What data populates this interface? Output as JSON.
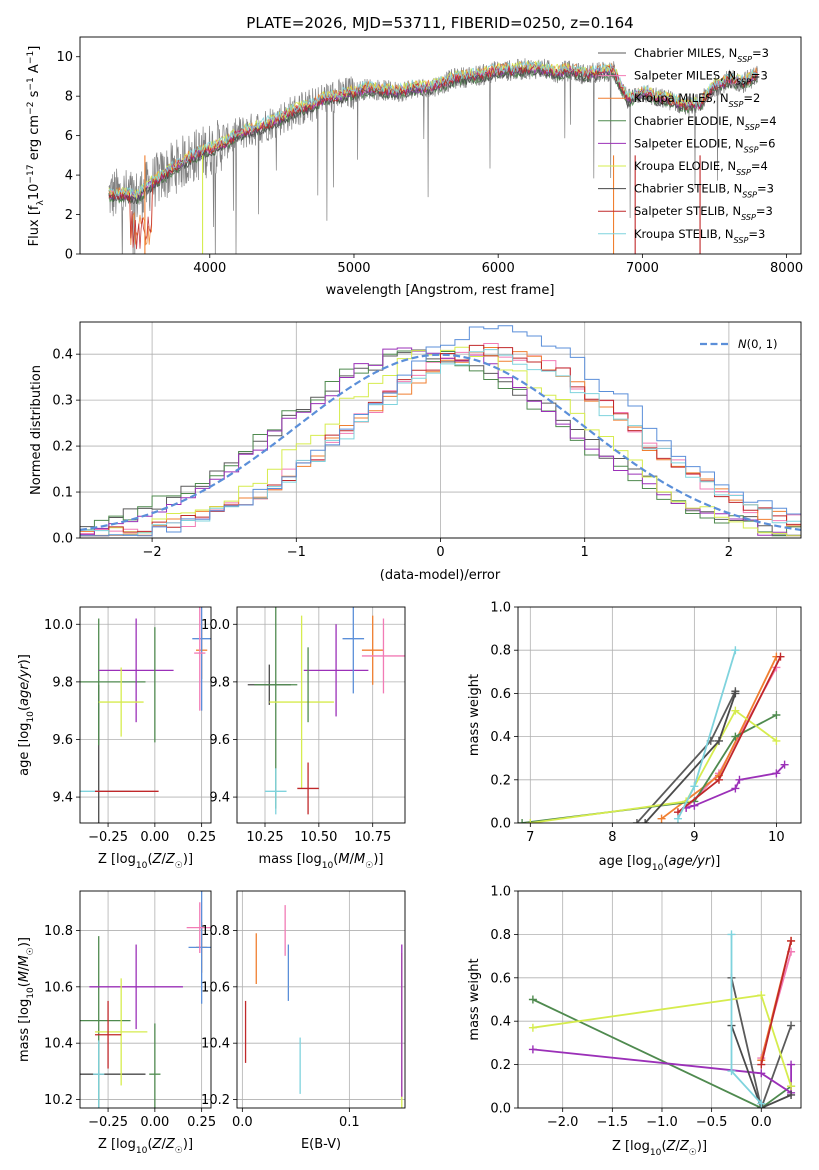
{
  "chart_data": [
    {
      "id": "spectrum",
      "type": "line",
      "title": "PLATE=2026, MJD=53711, FIBERID=0250, z=0.164",
      "xlabel": "wavelength [Angstrom, rest frame]",
      "ylabel": "Flux [f_λ 10^-17 erg cm^-2 s^-1 A^-1]",
      "xlim": [
        3100,
        8100
      ],
      "ylim": [
        0,
        11
      ],
      "xticks": [
        4000,
        5000,
        6000,
        7000,
        8000
      ],
      "yticks": [
        0,
        2,
        4,
        6,
        8,
        10
      ],
      "data_series": {
        "name": "data",
        "color": "#808080",
        "x": [
          3300,
          3400,
          3500,
          3600,
          3700,
          3800,
          3900,
          4000,
          4100,
          4200,
          4300,
          4400,
          4500,
          4600,
          4700,
          4800,
          4900,
          5000,
          5100,
          5200,
          5300,
          5400,
          5500,
          5600,
          5700,
          5800,
          5900,
          6000,
          6100,
          6200,
          6300,
          6400,
          6500,
          6600,
          6700,
          6800,
          6900,
          7000,
          7100,
          7200,
          7300,
          7400,
          7500,
          7600,
          7700,
          7800
        ],
        "y": [
          3.0,
          3.0,
          2.9,
          3.6,
          4.1,
          4.6,
          5.0,
          5.3,
          5.6,
          6.1,
          6.3,
          6.6,
          6.9,
          7.3,
          7.5,
          7.9,
          8.0,
          8.2,
          8.4,
          8.3,
          8.2,
          8.4,
          8.4,
          8.6,
          8.9,
          9.0,
          9.1,
          9.3,
          9.3,
          9.4,
          9.4,
          9.2,
          9.3,
          9.1,
          9.2,
          9.3,
          7.8,
          8.2,
          7.9,
          7.8,
          7.5,
          7.6,
          8.5,
          8.8,
          8.7,
          9.1
        ]
      },
      "series": [
        {
          "name": "Chabrier MILES, N_SSP=3",
          "label_main": "Chabrier MILES, N",
          "label_sub": "SSP",
          "label_end": "=3",
          "color": "#5a5a5a"
        },
        {
          "name": "Salpeter MILES, N_SSP=3",
          "label_main": "Salpeter MILES, N",
          "label_sub": "SSP",
          "label_end": "=3",
          "color": "#f27bb5"
        },
        {
          "name": "Kroupa MILES, N_SSP=2",
          "label_main": "Kroupa MILES, N",
          "label_sub": "SSP",
          "label_end": "=2",
          "color": "#f07f30"
        },
        {
          "name": "Chabrier ELODIE, N_SSP=4",
          "label_main": "Chabrier ELODIE, N",
          "label_sub": "SSP",
          "label_end": "=4",
          "color": "#4f8a4f"
        },
        {
          "name": "Salpeter ELODIE, N_SSP=6",
          "label_main": "Salpeter ELODIE, N",
          "label_sub": "SSP",
          "label_end": "=6",
          "color": "#9b30b8"
        },
        {
          "name": "Kroupa ELODIE, N_SSP=4",
          "label_main": "Kroupa ELODIE, N",
          "label_sub": "SSP",
          "label_end": "=4",
          "color": "#d6ec4e"
        },
        {
          "name": "Chabrier STELIB, N_SSP=3",
          "label_main": "Chabrier STELIB, N",
          "label_sub": "SSP",
          "label_end": "=3",
          "color": "#4a4a4a"
        },
        {
          "name": "Salpeter STELIB, N_SSP=3",
          "label_main": "Salpeter STELIB, N",
          "label_sub": "SSP",
          "label_end": "=3",
          "color": "#c0282a"
        },
        {
          "name": "Kroupa STELIB, N_SSP=3",
          "label_main": "Kroupa STELIB, N",
          "label_sub": "SSP",
          "label_end": "=3",
          "color": "#7fd3dd"
        }
      ]
    },
    {
      "id": "residuals",
      "type": "histogram",
      "xlabel": "(data-model)/error",
      "ylabel": "Normed distribution",
      "xlim": [
        -2.5,
        2.5
      ],
      "ylim": [
        0,
        0.47
      ],
      "xticks": [
        -2,
        -1,
        0,
        1,
        2
      ],
      "yticks": [
        0.0,
        0.1,
        0.2,
        0.3,
        0.4
      ],
      "legend": "N(0, 1)",
      "legend_color": "#5b8fd9",
      "bin_edges_start": -2.5,
      "bin_width": 0.1,
      "hist_colors": [
        "#5a5a5a",
        "#f27bb5",
        "#f07f30",
        "#4f8a4f",
        "#9b30b8",
        "#d6ec4e",
        "#c0282a",
        "#7fd3dd",
        "#5b8fd9"
      ],
      "hist_profiles": [
        {
          "mean": -0.1,
          "sd": 1.0,
          "peak": 0.4
        },
        {
          "mean": 0.35,
          "sd": 0.95,
          "peak": 0.41
        },
        {
          "mean": 0.35,
          "sd": 0.95,
          "peak": 0.4
        },
        {
          "mean": -0.15,
          "sd": 1.0,
          "peak": 0.4
        },
        {
          "mean": -0.1,
          "sd": 0.95,
          "peak": 0.41
        },
        {
          "mean": 0.1,
          "sd": 0.9,
          "peak": 0.41
        },
        {
          "mean": 0.35,
          "sd": 0.95,
          "peak": 0.41
        },
        {
          "mean": 0.35,
          "sd": 0.95,
          "peak": 0.4
        },
        {
          "mean": 0.4,
          "sd": 0.95,
          "peak": 0.45
        }
      ]
    },
    {
      "id": "age-vs-Z",
      "type": "errorbar",
      "xlabel": "Z [log10(Z/Z☉)]",
      "ylabel": "age [log10(age/yr)]",
      "xlim": [
        -0.4,
        0.3
      ],
      "ylim": [
        9.31,
        10.06
      ],
      "xticks": [
        -0.25,
        0.0,
        0.25
      ],
      "yticks": [
        9.4,
        9.6,
        9.8,
        10.0
      ],
      "points": [
        {
          "x": -0.3,
          "y": 9.42,
          "xerr": 0.0,
          "yerr": 0.37,
          "color": "#4a4a4a"
        },
        {
          "x": -0.3,
          "y": 9.8,
          "xerr": 0.25,
          "yerr": 0.22,
          "color": "#4f8a4f"
        },
        {
          "x": -0.1,
          "y": 9.84,
          "xerr": 0.2,
          "yerr": 0.18,
          "color": "#9b30b8"
        },
        {
          "x": -0.18,
          "y": 9.73,
          "xerr": 0.12,
          "yerr": 0.12,
          "color": "#d6ec4e"
        },
        {
          "x": 0.0,
          "y": 9.79,
          "xerr": 0.0,
          "yerr": 0.2,
          "color": "#4f8a4f"
        },
        {
          "x": -0.3,
          "y": 9.42,
          "xerr": 0.17,
          "yerr": 0.0,
          "color": "#7fd3dd"
        },
        {
          "x": -0.15,
          "y": 9.42,
          "xerr": 0.17,
          "yerr": 0.0,
          "color": "#c0282a"
        },
        {
          "x": 0.25,
          "y": 9.91,
          "xerr": 0.03,
          "yerr": 0.1,
          "color": "#f07f30"
        },
        {
          "x": 0.25,
          "y": 9.95,
          "xerr": 0.05,
          "yerr": 0.25,
          "color": "#5b8fd9"
        },
        {
          "x": 0.24,
          "y": 9.9,
          "xerr": 0.03,
          "yerr": 0.2,
          "color": "#f27bb5"
        }
      ]
    },
    {
      "id": "age-vs-mass",
      "type": "errorbar",
      "xlabel": "mass [log10(M/M☉)]",
      "ylabel": "",
      "xlim": [
        10.12,
        10.9
      ],
      "ylim": [
        9.31,
        10.06
      ],
      "xticks": [
        10.25,
        10.5,
        10.75
      ],
      "yticks": [
        9.4,
        9.6,
        9.8,
        10.0
      ],
      "points": [
        {
          "x": 10.27,
          "y": 9.79,
          "xerr": 0.1,
          "yerr": 0.07,
          "color": "#4a4a4a"
        },
        {
          "x": 10.3,
          "y": 9.79,
          "xerr": 0.1,
          "yerr": 0.43,
          "color": "#4f8a4f"
        },
        {
          "x": 10.58,
          "y": 9.84,
          "xerr": 0.15,
          "yerr": 0.16,
          "color": "#9b30b8"
        },
        {
          "x": 10.42,
          "y": 9.73,
          "xerr": 0.15,
          "yerr": 0.3,
          "color": "#d6ec4e"
        },
        {
          "x": 10.45,
          "y": 9.79,
          "xerr": 0.0,
          "yerr": 0.13,
          "color": "#4f8a4f"
        },
        {
          "x": 10.3,
          "y": 9.42,
          "xerr": 0.05,
          "yerr": 0.08,
          "color": "#7fd3dd"
        },
        {
          "x": 10.45,
          "y": 9.43,
          "xerr": 0.05,
          "yerr": 0.09,
          "color": "#c0282a"
        },
        {
          "x": 10.75,
          "y": 9.91,
          "xerr": 0.05,
          "yerr": 0.12,
          "color": "#f07f30"
        },
        {
          "x": 10.66,
          "y": 9.95,
          "xerr": 0.05,
          "yerr": 0.19,
          "color": "#5b8fd9"
        },
        {
          "x": 10.8,
          "y": 9.89,
          "xerr": 0.1,
          "yerr": 0.13,
          "color": "#f27bb5"
        }
      ]
    },
    {
      "id": "weight-vs-age",
      "type": "line",
      "xlabel": "age [log10(age/yr)]",
      "ylabel": "mass weight",
      "xlim": [
        6.85,
        10.3
      ],
      "ylim": [
        0,
        1.0
      ],
      "xticks": [
        7,
        8,
        9,
        10
      ],
      "yticks": [
        0.0,
        0.2,
        0.4,
        0.6,
        0.8,
        1.0
      ],
      "series": [
        {
          "color": "#5a5a5a",
          "x": [
            8.3,
            9.2,
            9.5
          ],
          "y": [
            0.0,
            0.38,
            0.61
          ]
        },
        {
          "color": "#f27bb5",
          "x": [
            8.9,
            9.3,
            10.0
          ],
          "y": [
            0.07,
            0.23,
            0.72
          ]
        },
        {
          "color": "#f07f30",
          "x": [
            8.6,
            9.3,
            10.0
          ],
          "y": [
            0.02,
            0.22,
            0.77
          ]
        },
        {
          "color": "#4f8a4f",
          "x": [
            6.9,
            9.0,
            9.5,
            10.0
          ],
          "y": [
            0.0,
            0.1,
            0.4,
            0.5
          ]
        },
        {
          "color": "#9b30b8",
          "x": [
            8.9,
            9.0,
            9.5,
            9.55,
            10.0,
            10.1
          ],
          "y": [
            0.07,
            0.08,
            0.16,
            0.2,
            0.23,
            0.27
          ]
        },
        {
          "color": "#d6ec4e",
          "x": [
            7.0,
            8.9,
            9.5,
            10.0
          ],
          "y": [
            0.0,
            0.1,
            0.52,
            0.38
          ]
        },
        {
          "color": "#4a4a4a",
          "x": [
            8.4,
            9.3,
            9.5
          ],
          "y": [
            0.0,
            0.38,
            0.6
          ]
        },
        {
          "color": "#c0282a",
          "x": [
            8.8,
            9.3,
            10.05
          ],
          "y": [
            0.05,
            0.2,
            0.77
          ]
        },
        {
          "color": "#7fd3dd",
          "x": [
            8.8,
            9.0,
            9.5
          ],
          "y": [
            0.02,
            0.17,
            0.8
          ]
        }
      ]
    },
    {
      "id": "mass-vs-Z",
      "type": "errorbar",
      "xlabel": "Z [log10(Z/Z☉)]",
      "ylabel": "mass [log10(M/M☉)]",
      "xlim": [
        -0.4,
        0.3
      ],
      "ylim": [
        10.17,
        10.94
      ],
      "xticks": [
        -0.25,
        0.0,
        0.25
      ],
      "yticks": [
        10.2,
        10.4,
        10.6,
        10.8
      ],
      "points": [
        {
          "x": -0.3,
          "y": 10.29,
          "xerr": 0.25,
          "yerr": 0.12,
          "color": "#4a4a4a"
        },
        {
          "x": -0.3,
          "y": 10.48,
          "xerr": 0.17,
          "yerr": 0.3,
          "color": "#4f8a4f"
        },
        {
          "x": -0.1,
          "y": 10.6,
          "xerr": 0.25,
          "yerr": 0.15,
          "color": "#9b30b8"
        },
        {
          "x": -0.18,
          "y": 10.44,
          "xerr": 0.14,
          "yerr": 0.19,
          "color": "#d6ec4e"
        },
        {
          "x": 0.0,
          "y": 10.29,
          "xerr": 0.03,
          "yerr": 0.18,
          "color": "#4f8a4f"
        },
        {
          "x": -0.3,
          "y": 10.29,
          "xerr": 0.03,
          "yerr": 0.12,
          "color": "#7fd3dd"
        },
        {
          "x": -0.25,
          "y": 10.43,
          "xerr": 0.07,
          "yerr": 0.12,
          "color": "#c0282a"
        },
        {
          "x": 0.25,
          "y": 10.74,
          "xerr": 0.03,
          "yerr": 0.09,
          "color": "#f07f30"
        },
        {
          "x": 0.25,
          "y": 10.74,
          "xerr": 0.07,
          "yerr": 0.2,
          "color": "#5b8fd9"
        },
        {
          "x": 0.24,
          "y": 10.81,
          "xerr": 0.07,
          "yerr": 0.09,
          "color": "#f27bb5"
        }
      ]
    },
    {
      "id": "mass-vs-EBV",
      "type": "errorbar",
      "xlabel": "E(B-V)",
      "ylabel": "",
      "xlim": [
        -0.005,
        0.152
      ],
      "ylim": [
        10.17,
        10.94
      ],
      "xticks": [
        0.0,
        0.1
      ],
      "yticks": [
        10.2,
        10.4,
        10.6,
        10.8
      ],
      "points": [
        {
          "x": 0.003,
          "y": 10.44,
          "xerr": 0.0,
          "yerr": 0.11,
          "color": "#c0282a"
        },
        {
          "x": 0.013,
          "y": 10.7,
          "xerr": 0.0,
          "yerr": 0.09,
          "color": "#f07f30"
        },
        {
          "x": 0.04,
          "y": 10.8,
          "xerr": 0.0,
          "yerr": 0.09,
          "color": "#f27bb5"
        },
        {
          "x": 0.043,
          "y": 10.65,
          "xerr": 0.0,
          "yerr": 0.1,
          "color": "#5b8fd9"
        },
        {
          "x": 0.054,
          "y": 10.32,
          "xerr": 0.0,
          "yerr": 0.1,
          "color": "#7fd3dd"
        },
        {
          "x": 0.149,
          "y": 10.44,
          "xerr": 0.0,
          "yerr": 0.28,
          "color": "#d6ec4e"
        },
        {
          "x": 0.149,
          "y": 10.48,
          "xerr": 0.0,
          "yerr": 0.27,
          "color": "#9b30b8"
        }
      ]
    },
    {
      "id": "weight-vs-Z",
      "type": "line",
      "xlabel": "Z [log10(Z/Z☉)]",
      "ylabel": "mass weight",
      "xlim": [
        -2.45,
        0.4
      ],
      "ylim": [
        0,
        1.0
      ],
      "xticks": [
        -2.0,
        -1.5,
        -1.0,
        -0.5,
        0.0
      ],
      "yticks": [
        0.0,
        0.2,
        0.4,
        0.6,
        0.8,
        1.0
      ],
      "series": [
        {
          "color": "#5a5a5a",
          "x": [
            -0.3,
            0.0,
            0.3
          ],
          "y": [
            0.6,
            0.0,
            0.38
          ]
        },
        {
          "color": "#f27bb5",
          "x": [
            0.0,
            0.3
          ],
          "y": [
            0.23,
            0.72
          ]
        },
        {
          "color": "#f07f30",
          "x": [
            0.0,
            0.3
          ],
          "y": [
            0.22,
            0.77
          ]
        },
        {
          "color": "#4f8a4f",
          "x": [
            -2.3,
            0.0,
            0.3
          ],
          "y": [
            0.5,
            0.0,
            0.1
          ]
        },
        {
          "color": "#9b30b8",
          "x": [
            -2.3,
            0.0,
            0.3,
            0.3
          ],
          "y": [
            0.27,
            0.16,
            0.07,
            0.2
          ]
        },
        {
          "color": "#d6ec4e",
          "x": [
            -2.3,
            0.0,
            0.3
          ],
          "y": [
            0.37,
            0.52,
            0.1
          ]
        },
        {
          "color": "#4a4a4a",
          "x": [
            -0.3,
            0.0,
            0.3
          ],
          "y": [
            0.38,
            0.0,
            0.06
          ]
        },
        {
          "color": "#c0282a",
          "x": [
            0.0,
            0.3
          ],
          "y": [
            0.2,
            0.77
          ]
        },
        {
          "color": "#7fd3dd",
          "x": [
            -0.3,
            -0.3,
            0.0
          ],
          "y": [
            0.8,
            0.17,
            0.02
          ]
        }
      ]
    }
  ]
}
